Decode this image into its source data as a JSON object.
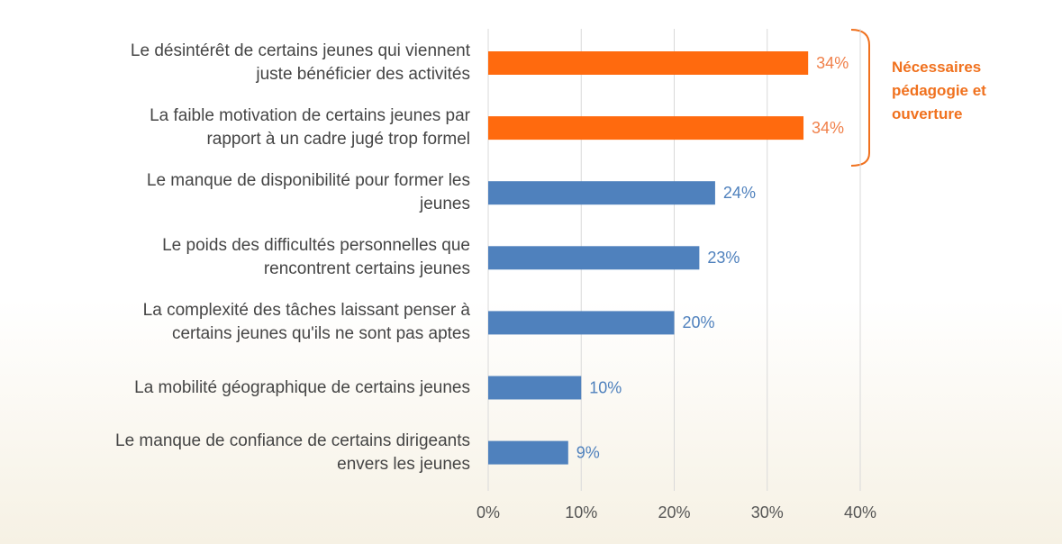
{
  "chart_data": {
    "type": "barh",
    "categories": [
      "Le désintérêt de certains jeunes qui viennent\njuste bénéficier des activités",
      "La faible motivation de certains jeunes par\nrapport à un cadre jugé trop formel",
      "Le manque de disponibilité pour former les\njeunes",
      "Le poids des difficultés personnelles que\nrencontrent certains jeunes",
      "La complexité des tâches laissant penser à\ncertains jeunes qu'ils ne sont pas aptes",
      "La mobilité géographique de certains jeunes",
      "Le manque de confiance de certains dirigeants\nenvers les jeunes"
    ],
    "values": [
      34.4,
      33.9,
      24.4,
      22.7,
      20,
      10,
      8.6
    ],
    "value_labels": [
      "34%",
      "34%",
      "24%",
      "23%",
      "20%",
      "10%",
      "9%"
    ],
    "colors": [
      "#ff6a0e",
      "#ff6a0e",
      "#4f81bd",
      "#4f81bd",
      "#4f81bd",
      "#4f81bd",
      "#4f81bd"
    ],
    "label_colors": [
      "#f0804a",
      "#f0804a",
      "#4f81bd",
      "#4f81bd",
      "#4f81bd",
      "#4f81bd",
      "#4f81bd"
    ],
    "xlim": [
      0,
      40
    ],
    "xticks": [
      {
        "value": 0,
        "label": "0%"
      },
      {
        "value": 10,
        "label": "10%"
      },
      {
        "value": 20,
        "label": "20%"
      },
      {
        "value": 30,
        "label": "30%"
      },
      {
        "value": 40,
        "label": "40%"
      }
    ],
    "grid": true,
    "annotation": "Nécessaires\npédagogie et\nouverture",
    "annotation_color": "#f0711e"
  }
}
